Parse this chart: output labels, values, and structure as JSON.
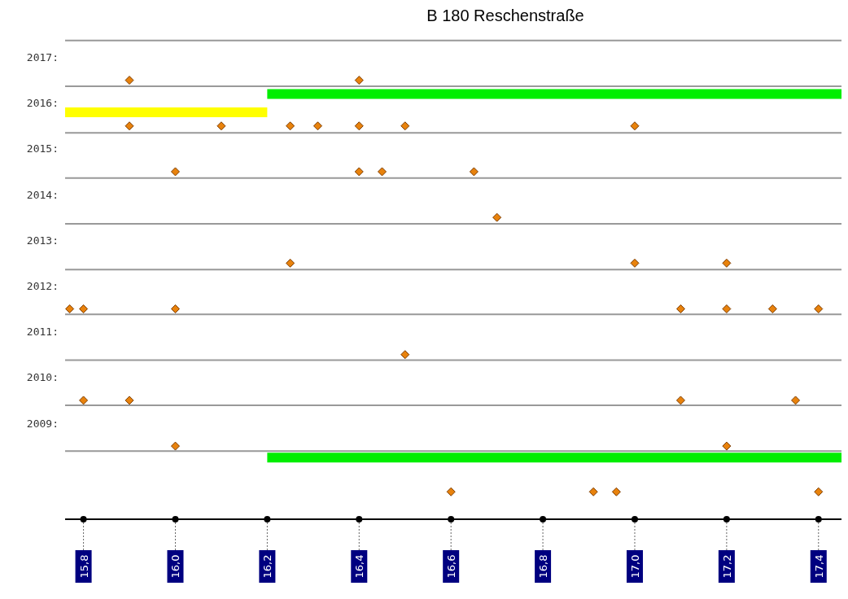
{
  "chart_data": {
    "type": "scatter",
    "title": "B 180 Reschenstraße",
    "xlim": [
      15.76,
      17.45
    ],
    "ylim": [
      2006.9,
      2017.4
    ],
    "grid": false,
    "legend": false,
    "xticks": [
      {
        "value": 15.8,
        "label": "15,8"
      },
      {
        "value": 16.0,
        "label": "16,0"
      },
      {
        "value": 16.2,
        "label": "16,2"
      },
      {
        "value": 16.4,
        "label": "16,4"
      },
      {
        "value": 16.6,
        "label": "16,6"
      },
      {
        "value": 16.8,
        "label": "16,8"
      },
      {
        "value": 17.0,
        "label": "17,0"
      },
      {
        "value": 17.2,
        "label": "17,2"
      },
      {
        "value": 17.4,
        "label": "17,4"
      }
    ],
    "yticks": [
      {
        "value": 2017,
        "label": "2017:"
      },
      {
        "value": 2016,
        "label": "2016:"
      },
      {
        "value": 2015,
        "label": "2015:"
      },
      {
        "value": 2014,
        "label": "2014:"
      },
      {
        "value": 2013,
        "label": "2013:"
      },
      {
        "value": 2012,
        "label": "2012:"
      },
      {
        "value": 2011,
        "label": "2011:"
      },
      {
        "value": 2010,
        "label": "2010:"
      },
      {
        "value": 2009,
        "label": "2009:"
      }
    ],
    "series": [
      {
        "type": "line",
        "color": "#00ee00",
        "x": [
          16.2,
          17.45
        ],
        "values": [
          2016.2,
          2016.2
        ]
      },
      {
        "type": "line",
        "color": "#ffff00",
        "x": [
          15.76,
          16.2
        ],
        "values": [
          2015.8,
          2015.8
        ]
      },
      {
        "type": "line",
        "color": "#00ee00",
        "x": [
          16.2,
          17.45
        ],
        "values": [
          2008.25,
          2008.25
        ]
      },
      {
        "type": "scatter",
        "color": "#e8820c",
        "marker": "diamond",
        "x": [
          15.9,
          16.4,
          15.9,
          16.1,
          16.25,
          16.31,
          16.4,
          16.5,
          17.0,
          16.0,
          16.4,
          16.45,
          16.65,
          16.7,
          16.25,
          17.0,
          17.2,
          15.77,
          15.8,
          16.0,
          17.1,
          17.2,
          17.3,
          17.4,
          16.5,
          15.8,
          15.9,
          17.1,
          17.35,
          16.0,
          17.2,
          16.6,
          16.91,
          16.96,
          17.4
        ],
        "values": [
          2016.5,
          2016.5,
          2015.5,
          2015.5,
          2015.5,
          2015.5,
          2015.5,
          2015.5,
          2015.5,
          2014.5,
          2014.5,
          2014.5,
          2014.5,
          2013.5,
          2012.5,
          2012.5,
          2012.5,
          2011.5,
          2011.5,
          2011.5,
          2011.5,
          2011.5,
          2011.5,
          2011.5,
          2010.5,
          2009.5,
          2009.5,
          2009.5,
          2009.5,
          2008.5,
          2008.5,
          2007.5,
          2007.5,
          2007.5,
          2007.5
        ]
      }
    ],
    "ref_lines": [
      {
        "axis": "y",
        "value": 2017.37,
        "color": "#999999"
      },
      {
        "axis": "y",
        "value": 2016.37,
        "color": "#999999"
      },
      {
        "axis": "y",
        "value": 2015.35,
        "color": "#999999"
      },
      {
        "axis": "y",
        "value": 2014.36,
        "color": "#999999"
      },
      {
        "axis": "y",
        "value": 2013.36,
        "color": "#999999"
      },
      {
        "axis": "y",
        "value": 2012.36,
        "color": "#999999"
      },
      {
        "axis": "y",
        "value": 2011.38,
        "color": "#999999"
      },
      {
        "axis": "y",
        "value": 2010.38,
        "color": "#999999"
      },
      {
        "axis": "y",
        "value": 2009.39,
        "color": "#999999"
      },
      {
        "axis": "y",
        "value": 2008.39,
        "color": "#999999"
      }
    ]
  }
}
